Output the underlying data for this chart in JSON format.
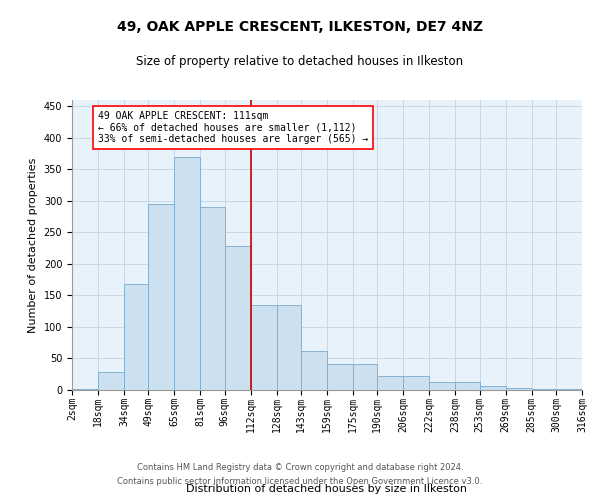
{
  "title": "49, OAK APPLE CRESCENT, ILKESTON, DE7 4NZ",
  "subtitle": "Size of property relative to detached houses in Ilkeston",
  "xlabel": "Distribution of detached houses by size in Ilkeston",
  "ylabel": "Number of detached properties",
  "footer1": "Contains HM Land Registry data © Crown copyright and database right 2024.",
  "footer2": "Contains public sector information licensed under the Open Government Licence v3.0.",
  "bar_color": "#cce0f0",
  "bar_edge_color": "#7aaace",
  "grid_color": "#c8d8ea",
  "background_color": "#e8f2fa",
  "vline_color": "#cc0000",
  "vline_x": 112,
  "annotation_line1": "49 OAK APPLE CRESCENT: 111sqm",
  "annotation_line2": "← 66% of detached houses are smaller (1,112)",
  "annotation_line3": "33% of semi-detached houses are larger (565) →",
  "bin_edges": [
    2,
    18,
    34,
    49,
    65,
    81,
    96,
    112,
    128,
    143,
    159,
    175,
    190,
    206,
    222,
    238,
    253,
    269,
    285,
    300,
    316
  ],
  "bar_heights": [
    2,
    28,
    168,
    295,
    370,
    290,
    228,
    135,
    135,
    62,
    42,
    42,
    22,
    22,
    12,
    12,
    6,
    3,
    2,
    1
  ],
  "ylim": [
    0,
    460
  ],
  "yticks": [
    0,
    50,
    100,
    150,
    200,
    250,
    300,
    350,
    400,
    450
  ],
  "xlim": [
    2,
    316
  ],
  "tick_label_fontsize": 7,
  "title_fontsize": 10,
  "subtitle_fontsize": 8.5,
  "xlabel_fontsize": 8,
  "ylabel_fontsize": 8,
  "annotation_fontsize": 7,
  "footer_fontsize": 6
}
